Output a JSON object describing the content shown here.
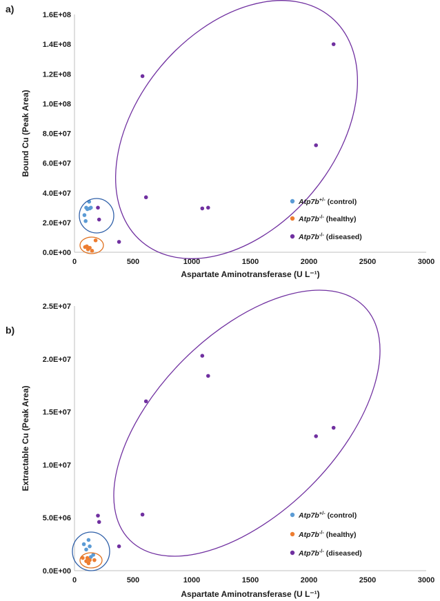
{
  "chart_data": [
    {
      "type": "scatter",
      "panel": "a)",
      "xlabel": "Aspartate Aminotransferase (U L⁻¹)",
      "ylabel": "Bound Cu (Peak Area)",
      "xlim": [
        0,
        3000
      ],
      "ylim": [
        0,
        160000000
      ],
      "x_ticks": [
        "0",
        "500",
        "1000",
        "1500",
        "2000",
        "2500",
        "3000"
      ],
      "y_ticks": [
        "0.0E+00",
        "2.0E+07",
        "4.0E+07",
        "6.0E+07",
        "8.0E+07",
        "1.0E+08",
        "1.2E+08",
        "1.4E+08",
        "1.6E+08"
      ],
      "grid": false,
      "legend_position": "right",
      "series": [
        {
          "name": "Atp7b⁺ᐟ⁻ (control)",
          "legend_italic": "Atp7b",
          "legend_sup": "+/-",
          "legend_rest": " (control)",
          "color": "#5b9bd5",
          "x": [
            85,
            95,
            100,
            110,
            125,
            130,
            140
          ],
          "y": [
            25000000,
            21000000,
            30000000,
            29000000,
            34000000,
            29500000,
            30000000
          ]
        },
        {
          "name": "Atp7b⁻ᐟ⁻ (healthy)",
          "legend_italic": "Atp7b",
          "legend_sup": "-/-",
          "legend_rest": " (healthy)",
          "color": "#ed7d31",
          "x": [
            90,
            105,
            115,
            130,
            150,
            180
          ],
          "y": [
            3500000,
            4000000,
            2000000,
            3000000,
            1000000,
            8000000
          ]
        },
        {
          "name": "Atp7b⁻ᐟ⁻ (diseased)",
          "legend_italic": "Atp7b",
          "legend_sup": "-/-",
          "legend_rest": " (diseased)",
          "color": "#7030a0",
          "x": [
            200,
            210,
            380,
            580,
            610,
            1090,
            1140,
            2060,
            2210
          ],
          "y": [
            30000000,
            22000000,
            7000000,
            118500000,
            37000000,
            29500000,
            30000000,
            72000000,
            140000000
          ]
        }
      ],
      "ellipse_colors": [
        "#2e5fa8",
        "#e0711f",
        "#7030a0"
      ]
    },
    {
      "type": "scatter",
      "panel": "b)",
      "xlabel": "Aspartate Aminotransferase (U L⁻¹)",
      "ylabel": "Extractable Cu (Peak Area)",
      "xlim": [
        0,
        3000
      ],
      "ylim": [
        0,
        25000000
      ],
      "x_ticks": [
        "0",
        "500",
        "1000",
        "1500",
        "2000",
        "2500",
        "3000"
      ],
      "y_ticks": [
        "0.0E+00",
        "5.0E+06",
        "1.0E+07",
        "1.5E+07",
        "2.0E+07",
        "2.5E+07"
      ],
      "grid": false,
      "legend_position": "right",
      "series": [
        {
          "name": "Atp7b⁺ᐟ⁻ (control)",
          "legend_italic": "Atp7b",
          "legend_sup": "+/-",
          "legend_rest": " (control)",
          "color": "#5b9bd5",
          "x": [
            80,
            100,
            120,
            130,
            140,
            160
          ],
          "y": [
            2500000,
            2000000,
            2900000,
            2300000,
            1300000,
            1500000
          ]
        },
        {
          "name": "Atp7b⁻ᐟ⁻ (healthy)",
          "legend_italic": "Atp7b",
          "legend_sup": "-/-",
          "legend_rest": " (healthy)",
          "color": "#ed7d31",
          "x": [
            70,
            100,
            110,
            120,
            130,
            170
          ],
          "y": [
            1200000,
            900000,
            1200000,
            700000,
            1000000,
            1000000
          ]
        },
        {
          "name": "Atp7b⁻ᐟ⁻ (diseased)",
          "legend_italic": "Atp7b",
          "legend_sup": "-/-",
          "legend_rest": " (diseased)",
          "color": "#7030a0",
          "x": [
            200,
            210,
            380,
            580,
            610,
            1090,
            1140,
            2060,
            2210
          ],
          "y": [
            5200000,
            4600000,
            2300000,
            5300000,
            16000000,
            20300000,
            18400000,
            12700000,
            13500000
          ]
        }
      ],
      "ellipse_colors": [
        "#2e5fa8",
        "#e0711f",
        "#7030a0"
      ]
    }
  ]
}
